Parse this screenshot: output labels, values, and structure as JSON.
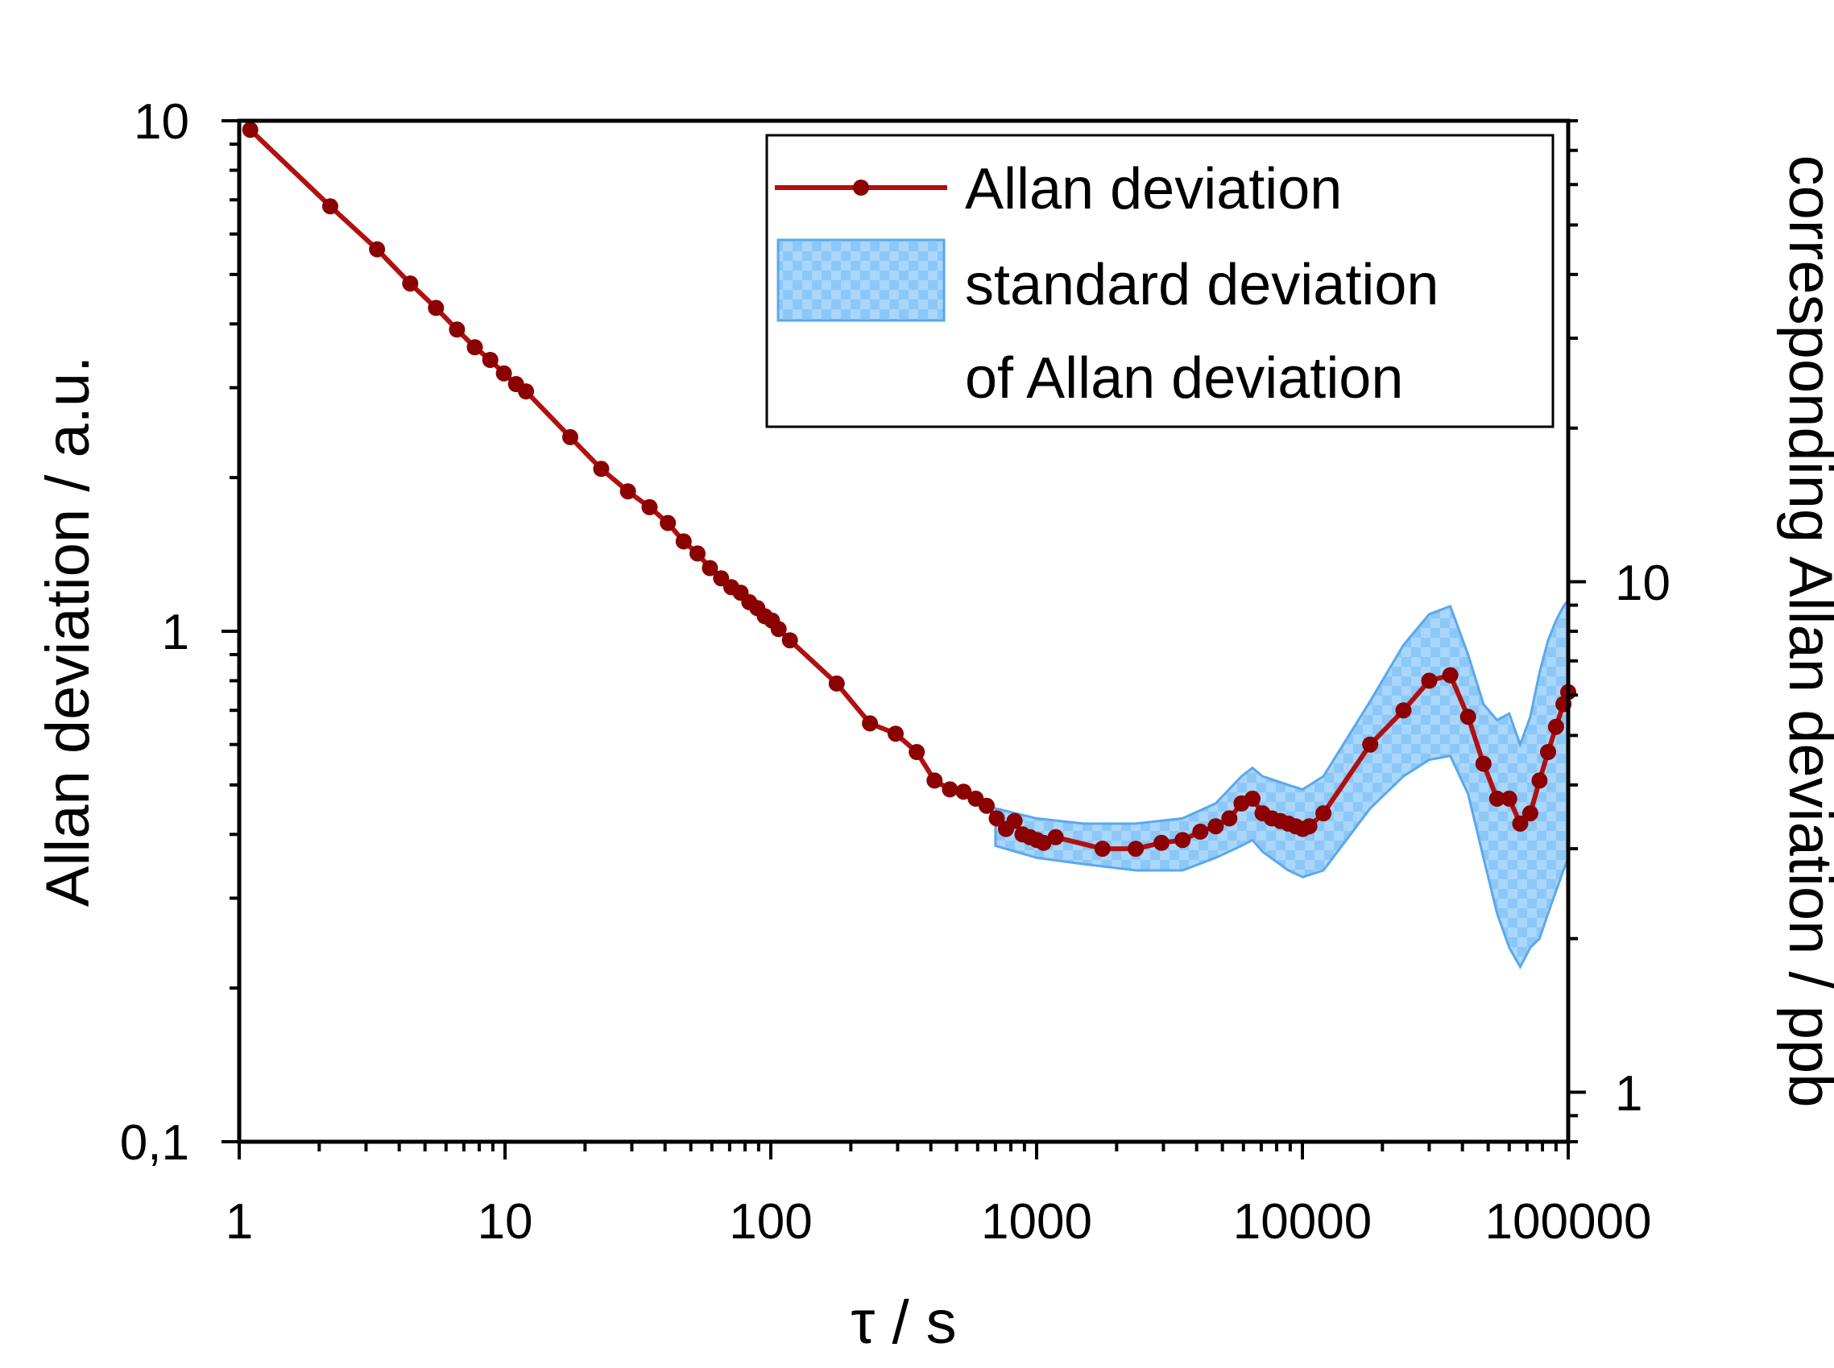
{
  "chart_data": {
    "type": "line",
    "xlabel": "τ / s",
    "ylabel": "Allan deviation / a.u.",
    "y2label": "corresponding Allan deviation / ppb",
    "xscale": "log",
    "yscale": "log",
    "xlim": [
      1,
      100000
    ],
    "ylim": [
      0.1,
      10
    ],
    "y2lim": [
      0.8,
      80
    ],
    "x_tick_labels": [
      "1",
      "10",
      "100",
      "1000",
      "10000",
      "100000"
    ],
    "y_tick_labels": [
      "0,1",
      "1",
      "10"
    ],
    "y2_tick_labels": [
      "1",
      "10"
    ],
    "legend": {
      "position": "top-right",
      "line_label": "Allan deviation",
      "band_label_line1": "standard deviation",
      "band_label_line2": "of  Allan deviation"
    },
    "colors": {
      "line": "#b01010",
      "marker": "#8b0000",
      "band_fill": "#8cc7f7",
      "band_edge": "#5aa8ec"
    },
    "series": [
      {
        "name": "Allan deviation",
        "x": [
          1.1,
          2.2,
          3.3,
          4.4,
          5.5,
          6.6,
          7.7,
          8.8,
          9.9,
          11,
          12,
          17.6,
          23,
          29,
          35,
          41,
          47,
          53,
          59,
          65,
          71,
          77,
          83,
          89,
          95,
          101,
          107,
          118,
          177,
          236,
          295,
          354,
          413,
          472,
          531,
          590,
          649,
          708,
          767,
          826,
          885,
          944,
          1003,
          1062,
          1180,
          1770,
          2360,
          2950,
          3540,
          4130,
          4720,
          5310,
          5900,
          6490,
          7080,
          7670,
          8260,
          8850,
          9440,
          10030,
          10620,
          12000,
          18000,
          24000,
          30000,
          36000,
          42000,
          48000,
          54000,
          60000,
          66000,
          72000,
          78000,
          84000,
          90000,
          96000,
          100000
        ],
        "values": [
          9.6,
          6.8,
          5.6,
          4.8,
          4.3,
          3.9,
          3.6,
          3.4,
          3.2,
          3.05,
          2.95,
          2.4,
          2.08,
          1.88,
          1.75,
          1.63,
          1.5,
          1.42,
          1.33,
          1.27,
          1.22,
          1.19,
          1.14,
          1.11,
          1.07,
          1.05,
          1.01,
          0.96,
          0.79,
          0.66,
          0.63,
          0.58,
          0.51,
          0.49,
          0.485,
          0.47,
          0.455,
          0.43,
          0.41,
          0.425,
          0.4,
          0.395,
          0.39,
          0.385,
          0.395,
          0.375,
          0.375,
          0.385,
          0.39,
          0.405,
          0.415,
          0.43,
          0.46,
          0.47,
          0.44,
          0.43,
          0.425,
          0.42,
          0.415,
          0.41,
          0.415,
          0.44,
          0.6,
          0.7,
          0.8,
          0.82,
          0.68,
          0.55,
          0.47,
          0.47,
          0.42,
          0.44,
          0.51,
          0.58,
          0.65,
          0.72,
          0.76
        ]
      }
    ],
    "band": {
      "name": "standard deviation of Allan deviation",
      "x": [
        700,
        1000,
        1500,
        2360,
        3540,
        4720,
        5900,
        6490,
        7080,
        8850,
        10030,
        12000,
        18000,
        24000,
        30000,
        36000,
        42000,
        48000,
        54000,
        60000,
        66000,
        72000,
        78000,
        84000,
        90000,
        96000,
        100000
      ],
      "upper": [
        0.45,
        0.43,
        0.42,
        0.42,
        0.43,
        0.46,
        0.52,
        0.54,
        0.52,
        0.5,
        0.49,
        0.52,
        0.73,
        0.94,
        1.08,
        1.12,
        0.9,
        0.72,
        0.67,
        0.69,
        0.6,
        0.68,
        0.83,
        0.96,
        1.05,
        1.12,
        1.15
      ],
      "lower": [
        0.38,
        0.36,
        0.35,
        0.34,
        0.34,
        0.36,
        0.38,
        0.39,
        0.37,
        0.34,
        0.33,
        0.34,
        0.45,
        0.52,
        0.56,
        0.57,
        0.48,
        0.36,
        0.28,
        0.24,
        0.22,
        0.24,
        0.25,
        0.28,
        0.31,
        0.34,
        0.36
      ]
    }
  }
}
